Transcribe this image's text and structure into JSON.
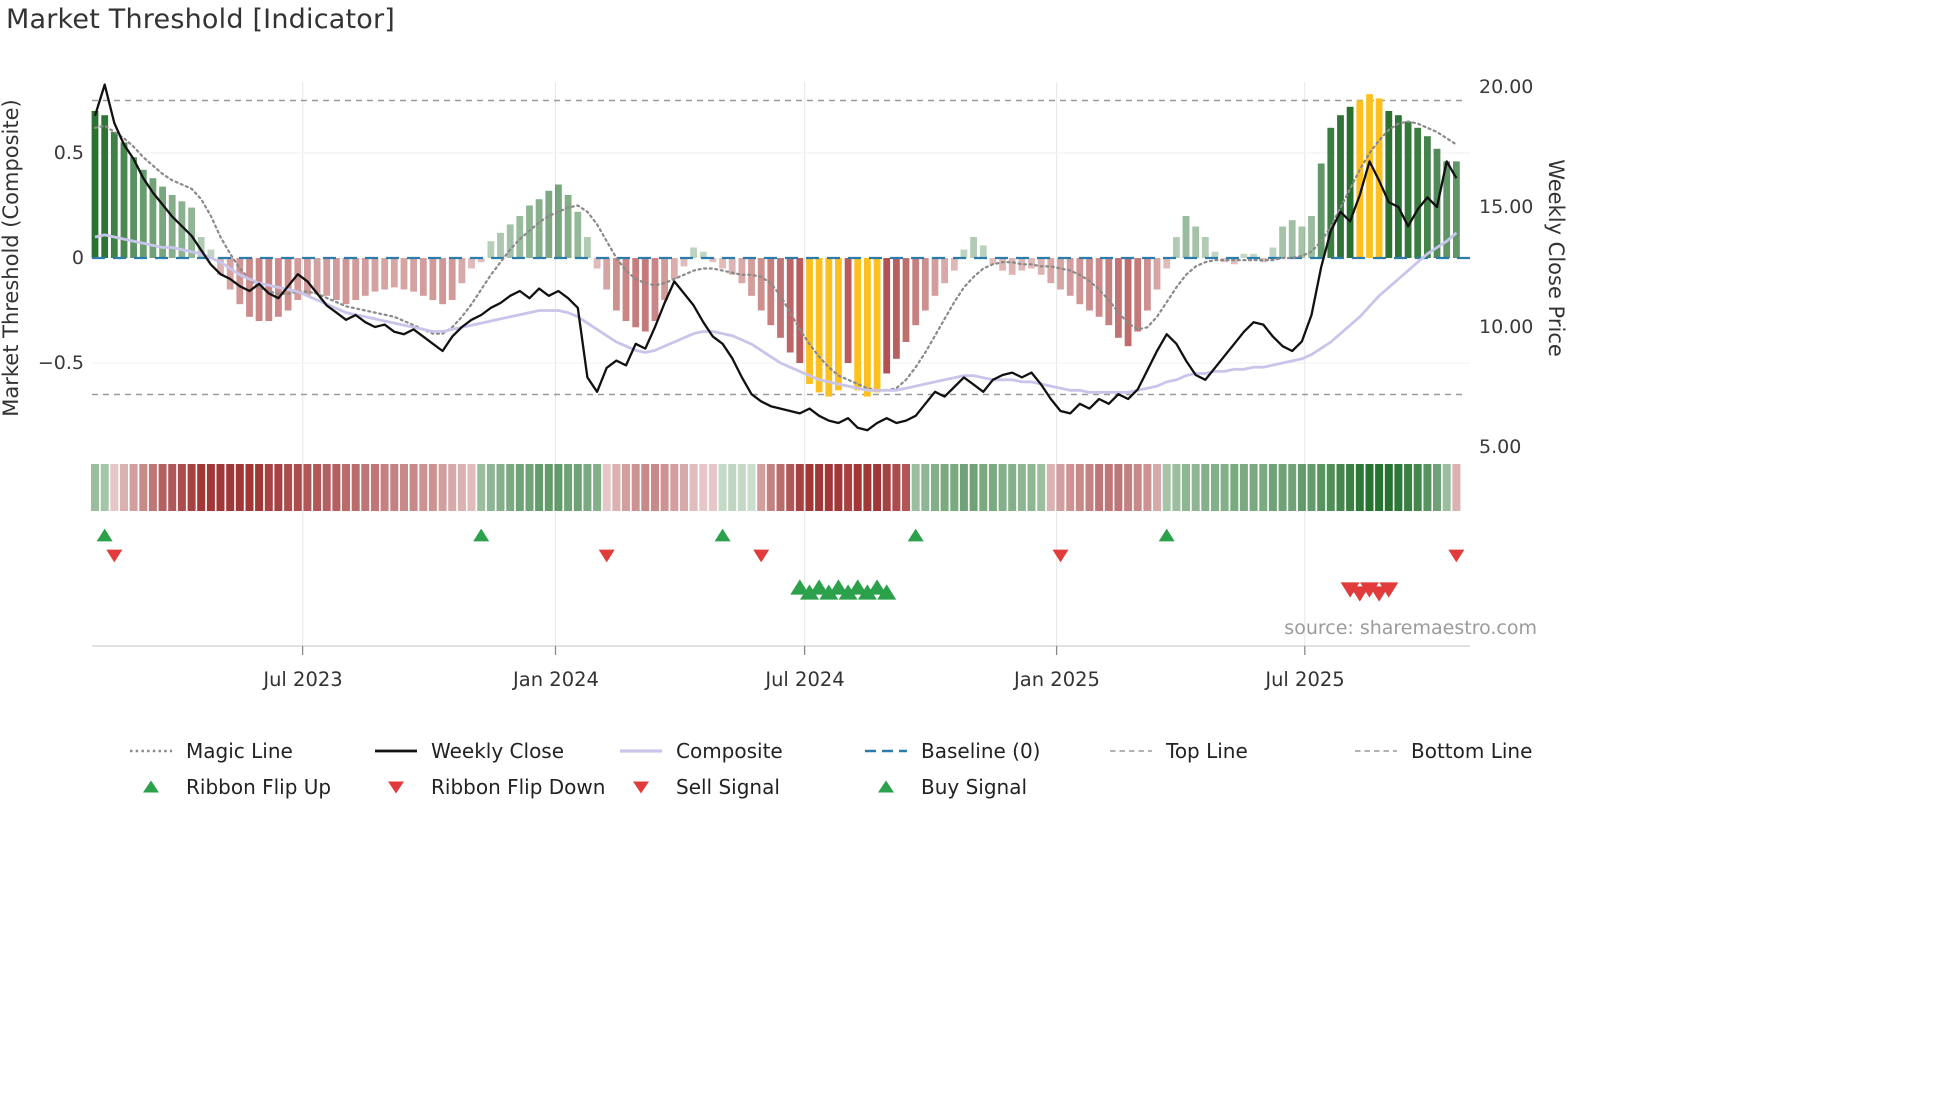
{
  "title": "Market Threshold [Indicator]",
  "source": "source: sharemaestro.com",
  "axes": {
    "left_label": "Market Threshold (Composite)",
    "right_label": "Weekly Close Price",
    "left_ticks": [
      "0.5",
      "0",
      "−0.5"
    ],
    "left_tick_values": [
      0.5,
      0,
      -0.5
    ],
    "right_ticks": [
      "20.00",
      "15.00",
      "10.00",
      "5.00"
    ],
    "right_tick_values": [
      20,
      15,
      10,
      5
    ],
    "x_ticks": [
      "Jul 2023",
      "Jan 2024",
      "Jul 2024",
      "Jan 2025",
      "Jul 2025"
    ]
  },
  "colors": {
    "bar_green_rgb": "40,112,48",
    "bar_red_rgb": "168,56,56",
    "gold": "#fdc01e",
    "ribbon_green_rgb": "30,110,40",
    "ribbon_red_rgb": "155,40,40",
    "line_close": "#111111",
    "line_composite": "#c9c5ea",
    "line_magic": "#8a8a8a",
    "baseline": "#2b7bab",
    "refline": "#9a9a9a",
    "signal_green": "#2aa14a",
    "signal_red": "#e23b3b",
    "gridline": "#e7e7e7",
    "spine": "#cfcfcf",
    "text": "#333333",
    "muted_text": "#9b9b9b"
  },
  "legend": {
    "items": [
      {
        "label": "Magic Line",
        "swatch": "dotted-gray-line"
      },
      {
        "label": "Weekly Close",
        "swatch": "solid-black-line"
      },
      {
        "label": "Composite",
        "swatch": "solid-lavender-line"
      },
      {
        "label": "Baseline (0)",
        "swatch": "dashed-blue-line"
      },
      {
        "label": "Top Line",
        "swatch": "dashed-gray-line"
      },
      {
        "label": "Bottom Line",
        "swatch": "dashed-gray-line"
      },
      {
        "label": "Ribbon Flip Up",
        "swatch": "green-up-triangle"
      },
      {
        "label": "Ribbon Flip Down",
        "swatch": "red-down-triangle"
      },
      {
        "label": "Sell Signal",
        "swatch": "red-down-triangle"
      },
      {
        "label": "Buy Signal",
        "swatch": "green-up-triangle"
      }
    ]
  },
  "chart_data": {
    "type": "mixed",
    "subtype": "weekly bar histogram + overlay lines + momentum ribbon + signal markers",
    "n_points": 142,
    "x_axis": {
      "unit": "week",
      "tick_positions": [
        21.5,
        47.7,
        73.5,
        99.6,
        125.3
      ]
    },
    "left_axis": {
      "label": "Market Threshold (Composite)",
      "range": [
        -0.85,
        0.85
      ],
      "ticks": [
        0.5,
        0,
        -0.5
      ]
    },
    "right_axis": {
      "label": "Weekly Close Price",
      "range": [
        4.8,
        20.6
      ],
      "ticks": [
        20,
        15,
        10,
        5
      ]
    },
    "reference_lines": {
      "baseline": 0,
      "top_line": 0.75,
      "bottom_line": -0.65
    },
    "series": [
      {
        "name": "Market Threshold",
        "type": "bar",
        "axis": "left",
        "highlight_indices": [
          74,
          75,
          76,
          77,
          79,
          80,
          81,
          131,
          132,
          133
        ],
        "values": [
          0.7,
          0.68,
          0.6,
          0.55,
          0.48,
          0.42,
          0.38,
          0.34,
          0.3,
          0.27,
          0.24,
          0.1,
          0.04,
          -0.08,
          -0.15,
          -0.22,
          -0.28,
          -0.3,
          -0.3,
          -0.28,
          -0.25,
          -0.2,
          -0.18,
          -0.17,
          -0.18,
          -0.2,
          -0.22,
          -0.2,
          -0.18,
          -0.16,
          -0.15,
          -0.14,
          -0.15,
          -0.16,
          -0.18,
          -0.2,
          -0.22,
          -0.2,
          -0.12,
          -0.05,
          -0.02,
          0.08,
          0.12,
          0.16,
          0.2,
          0.25,
          0.28,
          0.32,
          0.35,
          0.3,
          0.22,
          0.1,
          -0.05,
          -0.15,
          -0.25,
          -0.3,
          -0.33,
          -0.35,
          -0.3,
          -0.2,
          -0.1,
          -0.04,
          0.05,
          0.03,
          -0.02,
          -0.05,
          -0.08,
          -0.12,
          -0.18,
          -0.25,
          -0.32,
          -0.38,
          -0.45,
          -0.5,
          -0.6,
          -0.64,
          -0.66,
          -0.63,
          -0.5,
          -0.63,
          -0.66,
          -0.64,
          -0.55,
          -0.48,
          -0.4,
          -0.32,
          -0.25,
          -0.18,
          -0.12,
          -0.06,
          0.04,
          0.1,
          0.06,
          -0.03,
          -0.06,
          -0.08,
          -0.06,
          -0.05,
          -0.08,
          -0.12,
          -0.15,
          -0.18,
          -0.22,
          -0.25,
          -0.28,
          -0.32,
          -0.38,
          -0.42,
          -0.35,
          -0.25,
          -0.15,
          -0.05,
          0.1,
          0.2,
          0.15,
          0.1,
          0.03,
          -0.02,
          -0.03,
          0.02,
          0.02,
          -0.02,
          0.05,
          0.15,
          0.18,
          0.15,
          0.2,
          0.45,
          0.62,
          0.68,
          0.72,
          0.75,
          0.78,
          0.76,
          0.7,
          0.68,
          0.65,
          0.62,
          0.58,
          0.52,
          0.46,
          0.46
        ]
      },
      {
        "name": "Weekly Close",
        "type": "line",
        "axis": "right",
        "values": [
          18.8,
          20.1,
          18.5,
          17.6,
          17.0,
          16.2,
          15.6,
          15.1,
          14.6,
          14.2,
          13.8,
          13.2,
          12.6,
          12.2,
          12.0,
          11.7,
          11.5,
          11.8,
          11.4,
          11.2,
          11.7,
          12.2,
          11.9,
          11.4,
          10.9,
          10.6,
          10.3,
          10.5,
          10.2,
          10.0,
          10.1,
          9.8,
          9.7,
          9.9,
          9.6,
          9.3,
          9.0,
          9.6,
          10.0,
          10.3,
          10.5,
          10.8,
          11.0,
          11.3,
          11.5,
          11.2,
          11.6,
          11.3,
          11.5,
          11.2,
          10.8,
          7.9,
          7.3,
          8.3,
          8.6,
          8.4,
          9.3,
          9.1,
          10.0,
          11.0,
          11.9,
          11.4,
          10.9,
          10.2,
          9.6,
          9.3,
          8.7,
          7.9,
          7.2,
          6.9,
          6.7,
          6.6,
          6.5,
          6.4,
          6.6,
          6.3,
          6.1,
          6.0,
          6.2,
          5.8,
          5.7,
          6.0,
          6.2,
          6.0,
          6.1,
          6.3,
          6.8,
          7.3,
          7.1,
          7.5,
          7.9,
          7.6,
          7.3,
          7.8,
          8.0,
          8.1,
          7.9,
          8.1,
          7.6,
          7.0,
          6.5,
          6.4,
          6.8,
          6.6,
          7.0,
          6.8,
          7.2,
          7.0,
          7.4,
          8.2,
          9.0,
          9.7,
          9.3,
          8.6,
          8.0,
          7.8,
          8.3,
          8.8,
          9.3,
          9.8,
          10.2,
          10.1,
          9.6,
          9.2,
          9.0,
          9.4,
          10.5,
          12.5,
          14.0,
          14.8,
          14.4,
          15.5,
          16.9,
          16.1,
          15.2,
          15.0,
          14.2,
          14.9,
          15.4,
          15.0,
          16.9,
          16.2
        ]
      },
      {
        "name": "Composite",
        "type": "line",
        "axis": "left",
        "values": [
          0.1,
          0.11,
          0.1,
          0.09,
          0.08,
          0.07,
          0.06,
          0.05,
          0.05,
          0.04,
          0.03,
          0.02,
          0.0,
          -0.02,
          -0.05,
          -0.08,
          -0.1,
          -0.12,
          -0.13,
          -0.14,
          -0.15,
          -0.16,
          -0.18,
          -0.2,
          -0.22,
          -0.24,
          -0.26,
          -0.27,
          -0.28,
          -0.29,
          -0.3,
          -0.31,
          -0.32,
          -0.33,
          -0.34,
          -0.35,
          -0.35,
          -0.34,
          -0.33,
          -0.32,
          -0.31,
          -0.3,
          -0.29,
          -0.28,
          -0.27,
          -0.26,
          -0.25,
          -0.25,
          -0.25,
          -0.26,
          -0.28,
          -0.31,
          -0.34,
          -0.37,
          -0.4,
          -0.42,
          -0.44,
          -0.45,
          -0.44,
          -0.42,
          -0.4,
          -0.38,
          -0.36,
          -0.35,
          -0.35,
          -0.36,
          -0.37,
          -0.39,
          -0.41,
          -0.44,
          -0.47,
          -0.5,
          -0.52,
          -0.54,
          -0.56,
          -0.58,
          -0.59,
          -0.6,
          -0.61,
          -0.62,
          -0.63,
          -0.63,
          -0.63,
          -0.63,
          -0.62,
          -0.61,
          -0.6,
          -0.59,
          -0.58,
          -0.57,
          -0.56,
          -0.56,
          -0.57,
          -0.58,
          -0.58,
          -0.58,
          -0.59,
          -0.59,
          -0.6,
          -0.61,
          -0.62,
          -0.63,
          -0.63,
          -0.64,
          -0.64,
          -0.64,
          -0.64,
          -0.64,
          -0.63,
          -0.62,
          -0.61,
          -0.59,
          -0.58,
          -0.56,
          -0.55,
          -0.55,
          -0.54,
          -0.54,
          -0.53,
          -0.53,
          -0.52,
          -0.52,
          -0.51,
          -0.5,
          -0.49,
          -0.48,
          -0.46,
          -0.43,
          -0.4,
          -0.36,
          -0.32,
          -0.28,
          -0.23,
          -0.18,
          -0.14,
          -0.1,
          -0.06,
          -0.02,
          0.02,
          0.05,
          0.08,
          0.12
        ]
      },
      {
        "name": "Magic Line",
        "type": "line",
        "axis": "left",
        "values": [
          0.62,
          0.63,
          0.6,
          0.57,
          0.53,
          0.48,
          0.44,
          0.4,
          0.37,
          0.35,
          0.33,
          0.28,
          0.2,
          0.1,
          0.02,
          -0.05,
          -0.1,
          -0.14,
          -0.16,
          -0.17,
          -0.17,
          -0.16,
          -0.16,
          -0.17,
          -0.19,
          -0.21,
          -0.23,
          -0.24,
          -0.25,
          -0.26,
          -0.27,
          -0.28,
          -0.3,
          -0.32,
          -0.34,
          -0.36,
          -0.36,
          -0.33,
          -0.28,
          -0.22,
          -0.15,
          -0.08,
          -0.02,
          0.04,
          0.09,
          0.13,
          0.17,
          0.2,
          0.22,
          0.24,
          0.25,
          0.22,
          0.16,
          0.08,
          0.0,
          -0.06,
          -0.1,
          -0.12,
          -0.13,
          -0.12,
          -0.1,
          -0.08,
          -0.06,
          -0.05,
          -0.05,
          -0.06,
          -0.07,
          -0.08,
          -0.08,
          -0.09,
          -0.12,
          -0.18,
          -0.26,
          -0.34,
          -0.41,
          -0.47,
          -0.52,
          -0.56,
          -0.58,
          -0.6,
          -0.62,
          -0.63,
          -0.63,
          -0.62,
          -0.58,
          -0.52,
          -0.45,
          -0.37,
          -0.29,
          -0.21,
          -0.14,
          -0.09,
          -0.05,
          -0.03,
          -0.02,
          -0.02,
          -0.03,
          -0.03,
          -0.04,
          -0.04,
          -0.05,
          -0.06,
          -0.08,
          -0.11,
          -0.15,
          -0.2,
          -0.26,
          -0.31,
          -0.34,
          -0.33,
          -0.28,
          -0.21,
          -0.14,
          -0.08,
          -0.04,
          -0.02,
          -0.01,
          -0.01,
          -0.01,
          -0.01,
          -0.01,
          -0.01,
          -0.01,
          0.0,
          0.0,
          0.01,
          0.03,
          0.08,
          0.15,
          0.24,
          0.33,
          0.42,
          0.5,
          0.56,
          0.61,
          0.64,
          0.65,
          0.64,
          0.62,
          0.6,
          0.57,
          0.54
        ]
      },
      {
        "name": "Momentum Ribbon",
        "type": "heatmap",
        "axis": "none",
        "values": [
          0.35,
          0.3,
          -0.15,
          -0.25,
          -0.35,
          -0.45,
          -0.55,
          -0.65,
          -0.7,
          -0.75,
          -0.8,
          -0.85,
          -0.85,
          -0.85,
          -0.85,
          -0.85,
          -0.85,
          -0.85,
          -0.8,
          -0.8,
          -0.75,
          -0.75,
          -0.7,
          -0.7,
          -0.65,
          -0.65,
          -0.6,
          -0.6,
          -0.55,
          -0.55,
          -0.5,
          -0.5,
          -0.45,
          -0.45,
          -0.4,
          -0.4,
          -0.35,
          -0.3,
          -0.25,
          -0.2,
          0.35,
          0.4,
          0.45,
          0.5,
          0.55,
          0.55,
          0.6,
          0.6,
          0.6,
          0.55,
          0.55,
          0.5,
          0.45,
          -0.15,
          -0.25,
          -0.35,
          -0.4,
          -0.45,
          -0.45,
          -0.4,
          -0.35,
          -0.3,
          -0.2,
          -0.15,
          -0.15,
          0.15,
          0.18,
          0.15,
          0.12,
          -0.35,
          -0.5,
          -0.6,
          -0.7,
          -0.8,
          -0.85,
          -0.85,
          -0.85,
          -0.85,
          -0.8,
          -0.85,
          -0.85,
          -0.85,
          -0.8,
          -0.75,
          -0.7,
          0.35,
          0.4,
          0.45,
          0.5,
          0.5,
          0.55,
          0.55,
          0.5,
          0.5,
          0.45,
          0.45,
          0.4,
          0.4,
          0.35,
          -0.25,
          -0.35,
          -0.4,
          -0.45,
          -0.5,
          -0.55,
          -0.55,
          -0.55,
          -0.5,
          -0.45,
          -0.4,
          -0.3,
          0.3,
          0.35,
          0.4,
          0.4,
          0.45,
          0.45,
          0.45,
          0.5,
          0.5,
          0.5,
          0.5,
          0.55,
          0.55,
          0.55,
          0.6,
          0.6,
          0.65,
          0.7,
          0.75,
          0.8,
          0.85,
          0.9,
          0.9,
          0.9,
          0.85,
          0.8,
          0.75,
          0.65,
          0.55,
          0.35,
          -0.25
        ]
      }
    ],
    "signals": {
      "ribbon_flip_up": [
        1,
        40,
        65,
        85,
        111
      ],
      "ribbon_flip_down": [
        2,
        53,
        69,
        100,
        141
      ],
      "buy": [
        73,
        74,
        75,
        76,
        77,
        78,
        79,
        80,
        81,
        82
      ],
      "sell": [
        130,
        131,
        132,
        133,
        134
      ]
    }
  }
}
